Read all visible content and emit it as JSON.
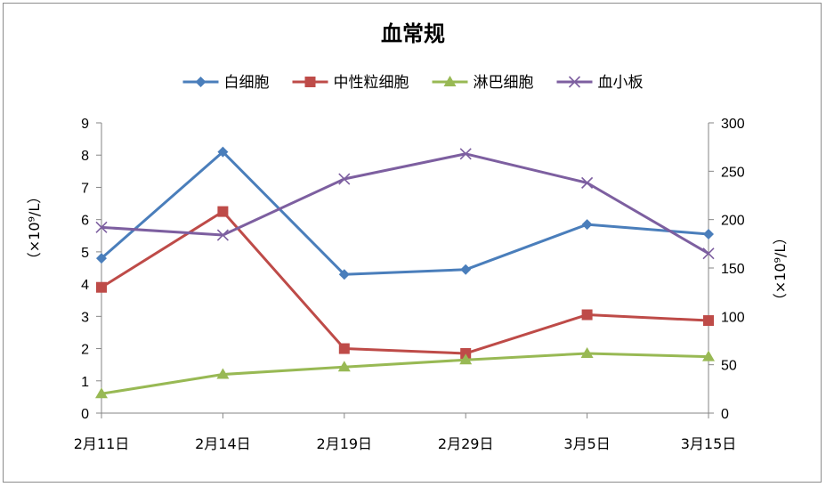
{
  "chart_data": {
    "type": "line",
    "title": "血常规",
    "categories": [
      "2月11日",
      "2月14日",
      "2月19日",
      "2月29日",
      "3月5日",
      "3月15日"
    ],
    "y_left": {
      "label": "（×10⁹/L）",
      "ylim": [
        0,
        9
      ],
      "ticks": [
        0,
        1,
        2,
        3,
        4,
        5,
        6,
        7,
        8,
        9
      ]
    },
    "y_right": {
      "label": "（×10⁹/L）",
      "ylim": [
        0,
        300
      ],
      "ticks": [
        0,
        50,
        100,
        150,
        200,
        250,
        300
      ]
    },
    "grid": false,
    "legend_position": "top",
    "series": [
      {
        "name": "白细胞",
        "axis": "left",
        "color": "#4a7ebb",
        "marker": "diamond",
        "values": [
          4.8,
          8.1,
          4.3,
          4.45,
          5.85,
          5.55
        ]
      },
      {
        "name": "中性粒细胞",
        "axis": "left",
        "color": "#be4b48",
        "marker": "square",
        "values": [
          3.9,
          6.25,
          2.0,
          1.85,
          3.05,
          2.87
        ]
      },
      {
        "name": "淋巴细胞",
        "axis": "left",
        "color": "#98b954",
        "marker": "triangle",
        "values": [
          0.6,
          1.2,
          1.43,
          1.65,
          1.85,
          1.75
        ]
      },
      {
        "name": "血小板",
        "axis": "right",
        "color": "#7d5fa0",
        "marker": "x",
        "values": [
          192,
          184,
          242,
          268,
          238,
          165
        ]
      }
    ]
  }
}
